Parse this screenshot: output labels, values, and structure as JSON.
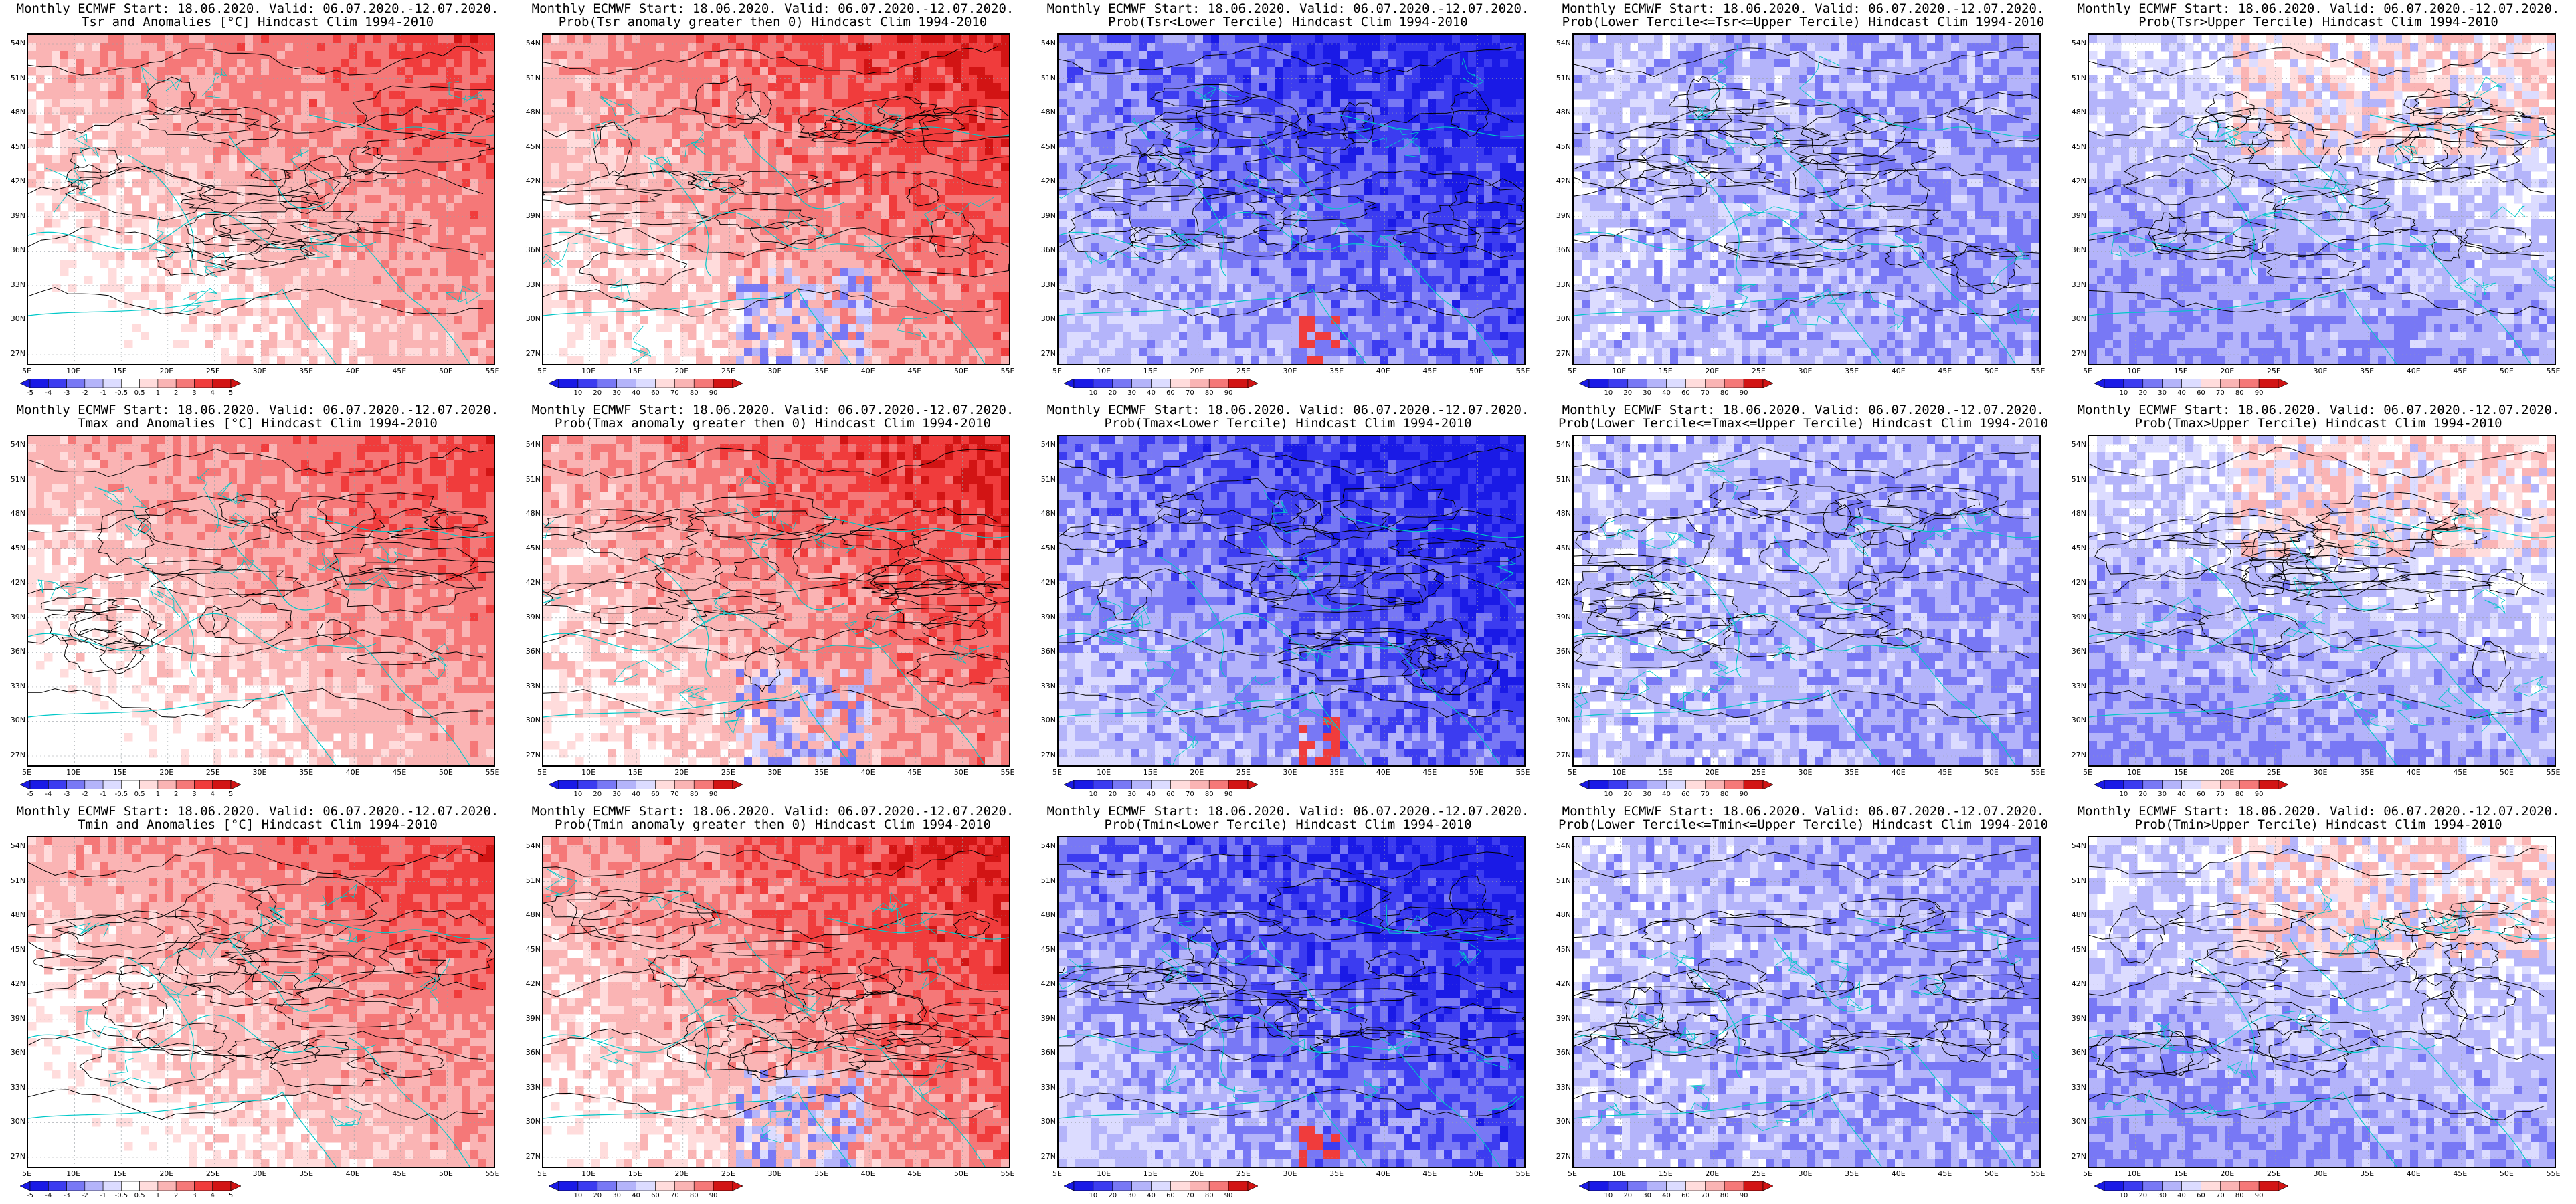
{
  "figure": {
    "rows": 3,
    "cols": 5,
    "lat_labels": [
      "54N",
      "51N",
      "48N",
      "45N",
      "42N",
      "39N",
      "36N",
      "33N",
      "30N",
      "27N"
    ],
    "lon_labels": [
      "5E",
      "10E",
      "15E",
      "20E",
      "25E",
      "30E",
      "35E",
      "40E",
      "45E",
      "50E",
      "55E"
    ],
    "colors": {
      "deep_blue": "#1a1ae6",
      "blue": "#3c3cf0",
      "mid_blue": "#7878f5",
      "light_blue": "#b4b4fa",
      "pale_blue": "#dcdcff",
      "white": "#ffffff",
      "pale_red": "#ffdcdc",
      "light_red": "#fab4b4",
      "mid_red": "#f57878",
      "red": "#f03c3c",
      "deep_red": "#d21414",
      "contour": "#000000",
      "coast": "#00c8c8"
    },
    "colorbar_anom_labels": [
      "-5",
      "-4",
      "-3",
      "-2",
      "-1",
      "-0.5",
      "0.5",
      "1",
      "2",
      "3",
      "4",
      "5"
    ],
    "colorbar_prob_labels": [
      "10",
      "20",
      "30",
      "40",
      "60",
      "70",
      "80",
      "90"
    ]
  },
  "panels": [
    {
      "row": 0,
      "col": 0,
      "title1": "Monthly ECMWF Start: 18.06.2020. Valid: 06.07.2020.-12.07.2020.",
      "title2": "Tsr and Anomalies [°C] Hindcast Clim 1994-2010",
      "kind": "anom",
      "bias": "red-light"
    },
    {
      "row": 0,
      "col": 1,
      "title1": "Monthly ECMWF Start: 18.06.2020. Valid: 06.07.2020.-12.07.2020.",
      "title2": "Prob(Tsr anomaly greater then 0) Hindcast Clim 1994-2010",
      "kind": "prob",
      "bias": "red"
    },
    {
      "row": 0,
      "col": 2,
      "title1": "Monthly ECMWF Start: 18.06.2020. Valid: 06.07.2020.-12.07.2020.",
      "title2": "Prob(Tsr<Lower Tercile) Hindcast Clim 1994-2010",
      "kind": "prob",
      "bias": "blue-strong"
    },
    {
      "row": 0,
      "col": 3,
      "title1": "Monthly ECMWF Start: 18.06.2020. Valid: 06.07.2020.-12.07.2020.",
      "title2": "Prob(Lower Tercile<=Tsr<=Upper Tercile) Hindcast Clim 1994-2010",
      "kind": "prob",
      "bias": "blue-light"
    },
    {
      "row": 0,
      "col": 4,
      "title1": "Monthly ECMWF Start: 18.06.2020. Valid: 06.07.2020.-12.07.2020.",
      "title2": "Prob(Tsr>Upper Tercile) Hindcast Clim 1994-2010",
      "kind": "prob",
      "bias": "mixed"
    },
    {
      "row": 1,
      "col": 0,
      "title1": "Monthly ECMWF Start: 18.06.2020. Valid: 06.07.2020.-12.07.2020.",
      "title2": "Tmax and Anomalies [°C] Hindcast Clim 1994-2010",
      "kind": "anom",
      "bias": "red-light"
    },
    {
      "row": 1,
      "col": 1,
      "title1": "Monthly ECMWF Start: 18.06.2020. Valid: 06.07.2020.-12.07.2020.",
      "title2": "Prob(Tmax anomaly greater then 0) Hindcast Clim 1994-2010",
      "kind": "prob",
      "bias": "red"
    },
    {
      "row": 1,
      "col": 2,
      "title1": "Monthly ECMWF Start: 18.06.2020. Valid: 06.07.2020.-12.07.2020.",
      "title2": "Prob(Tmax<Lower Tercile) Hindcast Clim 1994-2010",
      "kind": "prob",
      "bias": "blue-strong"
    },
    {
      "row": 1,
      "col": 3,
      "title1": "Monthly ECMWF Start: 18.06.2020. Valid: 06.07.2020.-12.07.2020.",
      "title2": "Prob(Lower Tercile<=Tmax<=Upper Tercile) Hindcast Clim 1994-2010",
      "kind": "prob",
      "bias": "blue-light"
    },
    {
      "row": 1,
      "col": 4,
      "title1": "Monthly ECMWF Start: 18.06.2020. Valid: 06.07.2020.-12.07.2020.",
      "title2": "Prob(Tmax>Upper Tercile) Hindcast Clim 1994-2010",
      "kind": "prob",
      "bias": "mixed"
    },
    {
      "row": 2,
      "col": 0,
      "title1": "Monthly ECMWF Start: 18.06.2020. Valid: 06.07.2020.-12.07.2020.",
      "title2": "Tmin and Anomalies [°C] Hindcast Clim 1994-2010",
      "kind": "anom",
      "bias": "red-light"
    },
    {
      "row": 2,
      "col": 1,
      "title1": "Monthly ECMWF Start: 18.06.2020. Valid: 06.07.2020.-12.07.2020.",
      "title2": "Prob(Tmin anomaly greater then 0) Hindcast Clim 1994-2010",
      "kind": "prob",
      "bias": "red"
    },
    {
      "row": 2,
      "col": 2,
      "title1": "Monthly ECMWF Start: 18.06.2020. Valid: 06.07.2020.-12.07.2020.",
      "title2": "Prob(Tmin<Lower Tercile) Hindcast Clim 1994-2010",
      "kind": "prob",
      "bias": "blue-strong"
    },
    {
      "row": 2,
      "col": 3,
      "title1": "Monthly ECMWF Start: 18.06.2020. Valid: 06.07.2020.-12.07.2020.",
      "title2": "Prob(Lower Tercile<=Tmin<=Upper Tercile) Hindcast Clim 1994-2010",
      "kind": "prob",
      "bias": "blue-light"
    },
    {
      "row": 2,
      "col": 4,
      "title1": "Monthly ECMWF Start: 18.06.2020. Valid: 06.07.2020.-12.07.2020.",
      "title2": "Prob(Tmin>Upper Tercile) Hindcast Clim 1994-2010",
      "kind": "prob",
      "bias": "mixed"
    }
  ]
}
